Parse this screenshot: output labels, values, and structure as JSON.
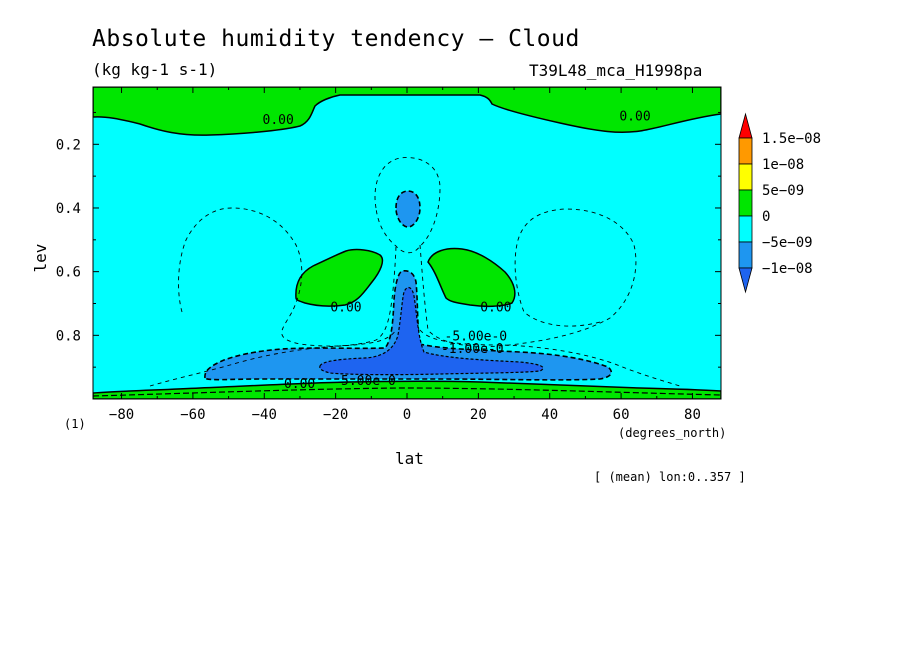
{
  "header": {
    "title": "Absolute humidity tendency — Cloud",
    "units": "(kg kg-1 s-1)",
    "run": "T39L48_mca_H1998pa"
  },
  "footer": {
    "panel": "(1)",
    "x_unit": "(degrees_north)",
    "mean_note": "[ (mean) lon:0..357 ]"
  },
  "chart_data": {
    "type": "contour",
    "xlabel": "lat",
    "ylabel": "lev",
    "xlim": [
      -88,
      88
    ],
    "ylim": [
      1.0,
      0.02
    ],
    "x_ticks": [
      -80,
      -60,
      -40,
      -20,
      0,
      20,
      40,
      60,
      80
    ],
    "x_tick_labels": [
      "−80",
      "−60",
      "−40",
      "−20",
      "0",
      "20",
      "40",
      "60",
      "80"
    ],
    "y_ticks": [
      0.2,
      0.4,
      0.6,
      0.8
    ],
    "y_tick_labels": [
      "0.2",
      "0.4",
      "0.6",
      "0.8"
    ],
    "colorbar": {
      "levels": [
        -1e-08,
        -5e-09,
        0,
        5e-09,
        1e-08,
        1.5e-08
      ],
      "labels": [
        "−1e−08",
        "−5e−09",
        "0",
        "5e−09",
        "1e−08",
        "1.5e−08"
      ],
      "colors": [
        "#1e64f0",
        "#1e96f0",
        "#00ffff",
        "#00e600",
        "#ffff00",
        "#ff9900",
        "#ff0000"
      ]
    },
    "contour_labels": [
      {
        "text": "0.00",
        "lat": -36,
        "lev": 0.12
      },
      {
        "text": "0.00",
        "lat": 64,
        "lev": 0.11
      },
      {
        "text": "0.00",
        "lat": -17,
        "lev": 0.71
      },
      {
        "text": "0.00",
        "lat": 25,
        "lev": 0.71
      },
      {
        "text": "-5.00e-0",
        "lat": 15,
        "lev": 0.8
      },
      {
        "text": "-1.00e-0",
        "lat": 14,
        "lev": 0.84
      },
      {
        "text": "0.00",
        "lat": -30,
        "lev": 0.95
      },
      {
        "text": "5.00e-0",
        "lat": -14,
        "lev": 0.94
      }
    ]
  }
}
